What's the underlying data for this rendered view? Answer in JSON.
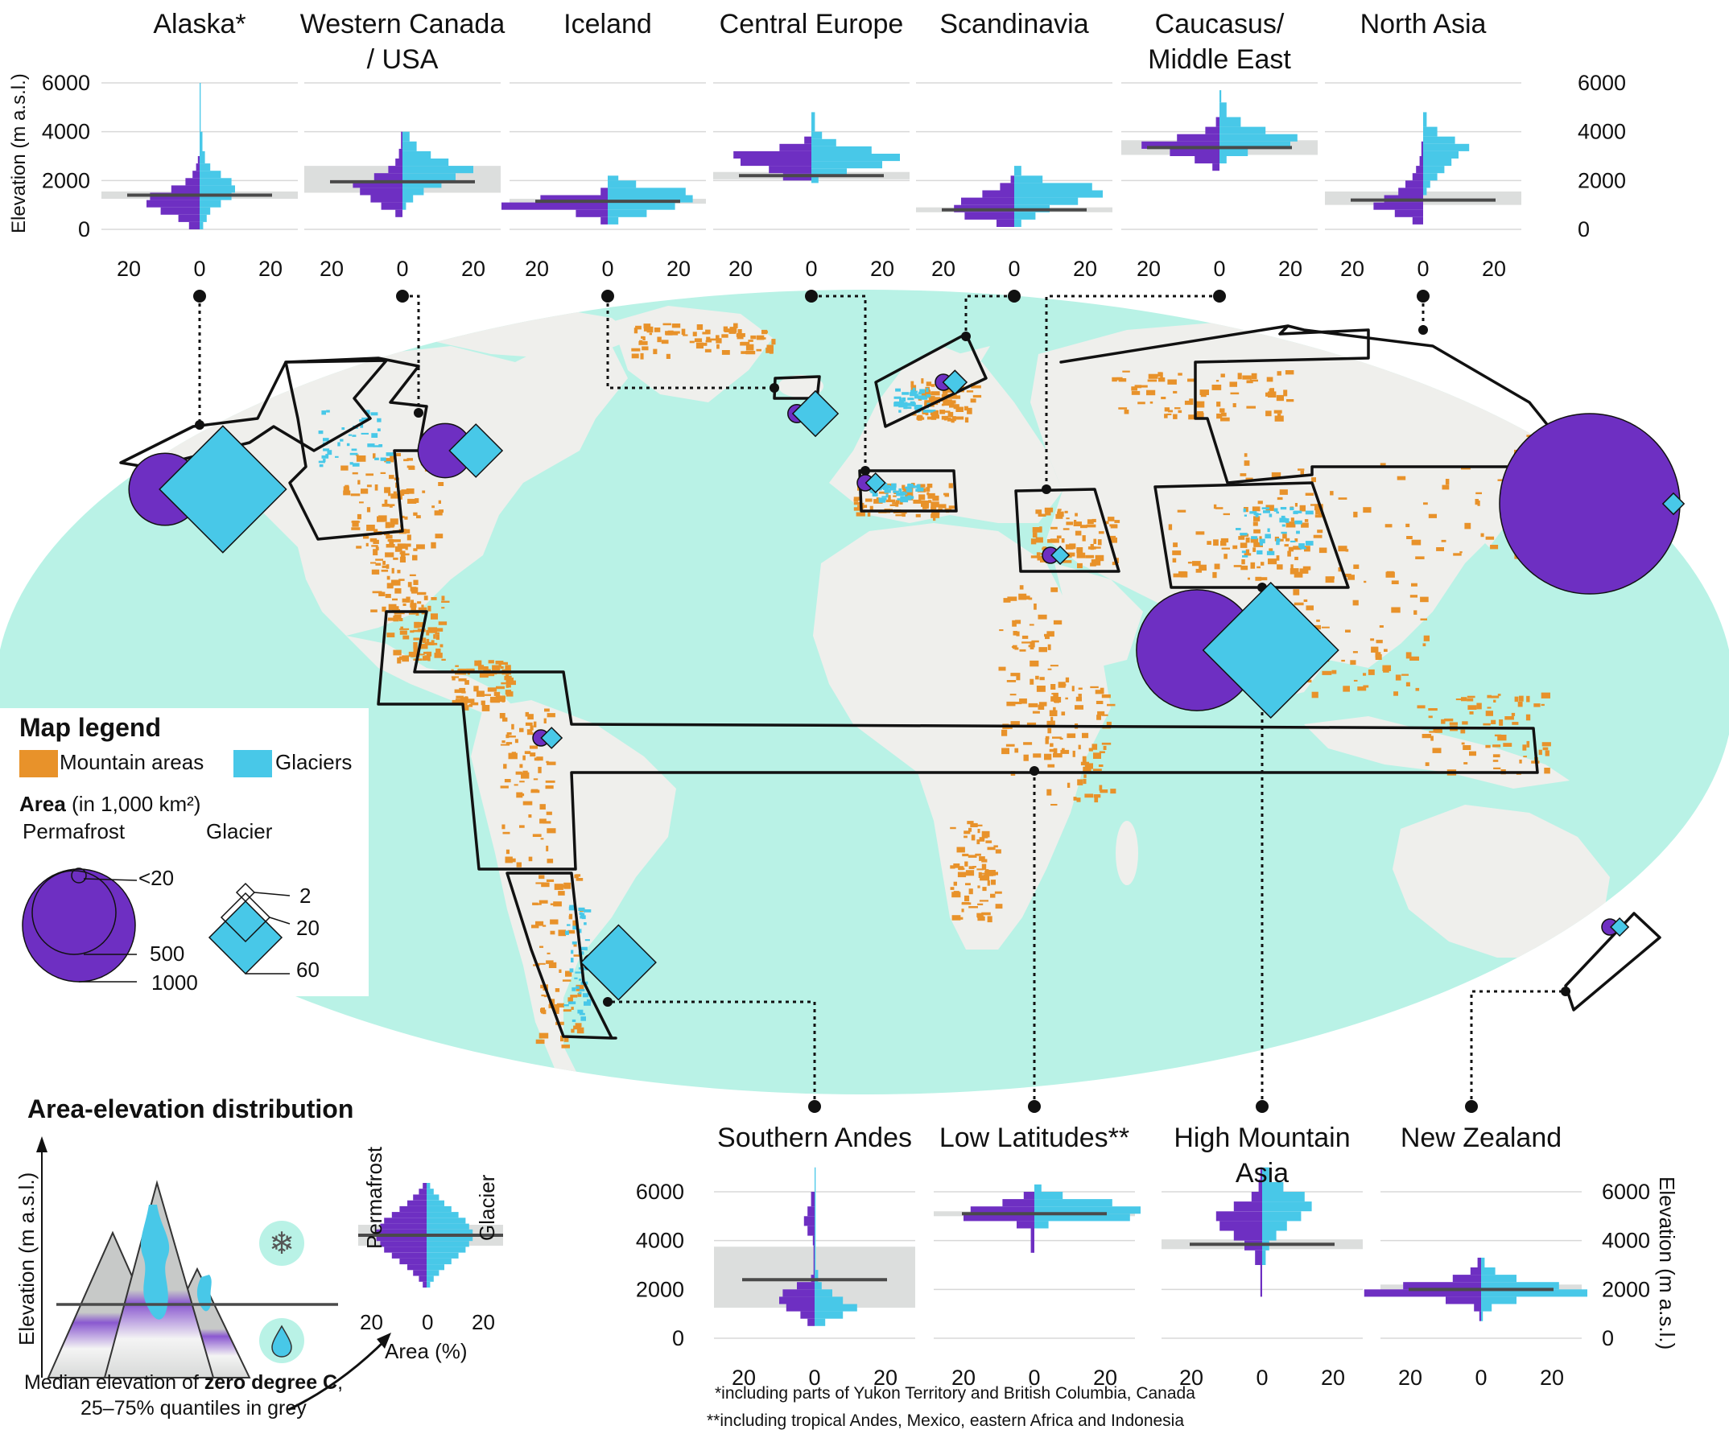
{
  "colors": {
    "ocean": "#b9f2e6",
    "land": "#efefec",
    "mountain": "#e8922a",
    "glacier": "#48c8e8",
    "permafrost": "#6e2fc2",
    "quantile": "#dcdedd",
    "median": "#4a4a4a"
  },
  "top_panels": [
    {
      "id": "alaska",
      "title": "Alaska*",
      "median": 1400,
      "q": [
        1250,
        1550
      ],
      "perm": [
        [
          0,
          300,
          3
        ],
        [
          300,
          600,
          6
        ],
        [
          600,
          900,
          11
        ],
        [
          900,
          1200,
          15
        ],
        [
          1200,
          1500,
          14
        ],
        [
          1500,
          1800,
          8
        ],
        [
          1800,
          2100,
          4
        ],
        [
          2100,
          2400,
          2
        ],
        [
          2400,
          2700,
          1
        ],
        [
          2700,
          3000,
          0.5
        ]
      ],
      "glac": [
        [
          0,
          300,
          1
        ],
        [
          300,
          600,
          2
        ],
        [
          600,
          900,
          3
        ],
        [
          900,
          1200,
          6
        ],
        [
          1200,
          1500,
          9
        ],
        [
          1500,
          1800,
          10
        ],
        [
          1800,
          2100,
          9
        ],
        [
          2100,
          2400,
          6
        ],
        [
          2400,
          2700,
          3
        ],
        [
          2700,
          3200,
          1.5
        ],
        [
          3200,
          4000,
          0.8
        ],
        [
          4000,
          6000,
          0.3
        ]
      ]
    },
    {
      "id": "wcanada",
      "title": "Western Canada / USA",
      "median": 1950,
      "q": [
        1500,
        2600
      ],
      "perm": [
        [
          500,
          800,
          2
        ],
        [
          800,
          1100,
          6
        ],
        [
          1100,
          1400,
          9
        ],
        [
          1400,
          1700,
          12
        ],
        [
          1700,
          2000,
          14
        ],
        [
          2000,
          2300,
          8
        ],
        [
          2300,
          2600,
          4
        ],
        [
          2600,
          2900,
          2
        ],
        [
          2900,
          3300,
          1
        ],
        [
          3300,
          4000,
          0.4
        ]
      ],
      "glac": [
        [
          800,
          1100,
          1
        ],
        [
          1100,
          1400,
          3
        ],
        [
          1400,
          1700,
          6
        ],
        [
          1700,
          2000,
          11
        ],
        [
          2000,
          2300,
          15
        ],
        [
          2300,
          2600,
          20
        ],
        [
          2600,
          2900,
          13
        ],
        [
          2900,
          3200,
          8
        ],
        [
          3200,
          3600,
          4
        ],
        [
          3600,
          4000,
          2
        ]
      ]
    },
    {
      "id": "iceland",
      "title": "Iceland",
      "median": 1150,
      "q": [
        1050,
        1250
      ],
      "perm": [
        [
          200,
          500,
          2
        ],
        [
          500,
          800,
          9
        ],
        [
          800,
          1100,
          30
        ],
        [
          1100,
          1400,
          19
        ],
        [
          1400,
          1700,
          2
        ]
      ],
      "glac": [
        [
          200,
          500,
          3
        ],
        [
          500,
          800,
          11
        ],
        [
          800,
          1100,
          19
        ],
        [
          1100,
          1400,
          24
        ],
        [
          1400,
          1700,
          22
        ],
        [
          1700,
          2000,
          8
        ],
        [
          2000,
          2200,
          3
        ]
      ]
    },
    {
      "id": "ceurope",
      "title": "Central Europe",
      "median": 2200,
      "q": [
        2050,
        2350
      ],
      "perm": [
        [
          2000,
          2300,
          8
        ],
        [
          2300,
          2600,
          12
        ],
        [
          2600,
          2900,
          20
        ],
        [
          2900,
          3200,
          22
        ],
        [
          3200,
          3500,
          9
        ],
        [
          3500,
          3800,
          2
        ]
      ],
      "glac": [
        [
          1900,
          2200,
          2
        ],
        [
          2200,
          2500,
          10
        ],
        [
          2500,
          2800,
          20
        ],
        [
          2800,
          3100,
          25
        ],
        [
          3100,
          3400,
          17
        ],
        [
          3400,
          3700,
          7
        ],
        [
          3700,
          4000,
          3
        ],
        [
          4000,
          4800,
          1
        ]
      ]
    },
    {
      "id": "scand",
      "title": "Scandinavia",
      "median": 800,
      "q": [
        700,
        900
      ],
      "perm": [
        [
          100,
          400,
          5
        ],
        [
          400,
          700,
          14
        ],
        [
          700,
          1000,
          17
        ],
        [
          1000,
          1300,
          15
        ],
        [
          1300,
          1600,
          9
        ],
        [
          1600,
          1900,
          4
        ],
        [
          1900,
          2200,
          1
        ]
      ],
      "glac": [
        [
          100,
          400,
          2
        ],
        [
          400,
          700,
          6
        ],
        [
          700,
          1000,
          10
        ],
        [
          1000,
          1300,
          18
        ],
        [
          1300,
          1600,
          25
        ],
        [
          1600,
          1900,
          22
        ],
        [
          1900,
          2200,
          8
        ],
        [
          2200,
          2600,
          2
        ]
      ]
    },
    {
      "id": "caucasus",
      "title": "Caucasus/ Middle East",
      "median": 3350,
      "q": [
        3050,
        3650
      ],
      "perm": [
        [
          2400,
          2700,
          2
        ],
        [
          2700,
          3000,
          7
        ],
        [
          3000,
          3300,
          14
        ],
        [
          3300,
          3600,
          22
        ],
        [
          3600,
          3900,
          12
        ],
        [
          3900,
          4200,
          4
        ],
        [
          4200,
          4600,
          1
        ]
      ],
      "glac": [
        [
          2700,
          3000,
          2
        ],
        [
          3000,
          3300,
          8
        ],
        [
          3300,
          3600,
          20
        ],
        [
          3600,
          3900,
          22
        ],
        [
          3900,
          4200,
          13
        ],
        [
          4200,
          4600,
          6
        ],
        [
          4600,
          5200,
          2
        ],
        [
          5200,
          5700,
          0.5
        ]
      ]
    },
    {
      "id": "nasia",
      "title": "North Asia",
      "median": 1200,
      "q": [
        1000,
        1550
      ],
      "perm": [
        [
          200,
          500,
          3
        ],
        [
          500,
          800,
          8
        ],
        [
          800,
          1100,
          14
        ],
        [
          1100,
          1400,
          11
        ],
        [
          1400,
          1700,
          7
        ],
        [
          1700,
          2000,
          5
        ],
        [
          2000,
          2300,
          3
        ],
        [
          2300,
          2600,
          2
        ],
        [
          2600,
          3000,
          1
        ],
        [
          3000,
          3600,
          0.5
        ]
      ],
      "glac": [
        [
          1400,
          1700,
          1
        ],
        [
          1700,
          2000,
          2
        ],
        [
          2000,
          2300,
          4
        ],
        [
          2300,
          2600,
          6
        ],
        [
          2600,
          2900,
          8
        ],
        [
          2900,
          3200,
          10
        ],
        [
          3200,
          3500,
          13
        ],
        [
          3500,
          3800,
          9
        ],
        [
          3800,
          4200,
          4
        ],
        [
          4200,
          4800,
          1
        ]
      ]
    }
  ],
  "bottom_panels": [
    {
      "id": "sandes",
      "title": "Southern Andes",
      "median": 2400,
      "q": [
        1250,
        3750
      ],
      "perm": [
        [
          500,
          800,
          2
        ],
        [
          800,
          1100,
          4
        ],
        [
          1100,
          1400,
          8
        ],
        [
          1400,
          1700,
          10
        ],
        [
          1700,
          2000,
          9
        ],
        [
          2000,
          2300,
          5
        ],
        [
          2300,
          2600,
          1
        ],
        [
          2600,
          3200,
          0.3
        ],
        [
          3200,
          3800,
          0.3
        ],
        [
          3800,
          4200,
          0.5
        ],
        [
          4200,
          4600,
          2
        ],
        [
          4600,
          5000,
          3
        ],
        [
          5000,
          5400,
          2
        ],
        [
          5400,
          6000,
          1
        ]
      ],
      "glac": [
        [
          500,
          800,
          3
        ],
        [
          800,
          1100,
          8
        ],
        [
          1100,
          1400,
          12
        ],
        [
          1400,
          1700,
          8
        ],
        [
          1700,
          2000,
          5
        ],
        [
          2000,
          2300,
          2
        ],
        [
          2300,
          2800,
          1
        ],
        [
          2800,
          7000,
          0.3
        ]
      ]
    },
    {
      "id": "lowlat",
      "title": "Low Latitudes**",
      "median": 5100,
      "q": [
        5000,
        5200
      ],
      "perm": [
        [
          3500,
          4500,
          1
        ],
        [
          4500,
          4800,
          5
        ],
        [
          4800,
          5100,
          20
        ],
        [
          5100,
          5400,
          18
        ],
        [
          5400,
          5700,
          9
        ],
        [
          5700,
          6000,
          3
        ]
      ],
      "glac": [
        [
          4500,
          4800,
          4
        ],
        [
          4800,
          5100,
          27
        ],
        [
          5100,
          5400,
          30
        ],
        [
          5400,
          5700,
          22
        ],
        [
          5700,
          6000,
          8
        ],
        [
          6000,
          6300,
          2
        ]
      ]
    },
    {
      "id": "hma",
      "title": "High Mountain Asia",
      "median": 3850,
      "q": [
        3650,
        4050
      ],
      "perm": [
        [
          1700,
          3000,
          0.5
        ],
        [
          3000,
          3600,
          2
        ],
        [
          3600,
          4000,
          5
        ],
        [
          4000,
          4400,
          8
        ],
        [
          4400,
          4800,
          12
        ],
        [
          4800,
          5200,
          13
        ],
        [
          5200,
          5600,
          8
        ],
        [
          5600,
          6000,
          3
        ],
        [
          6000,
          6500,
          1
        ],
        [
          6500,
          7000,
          0.5
        ]
      ],
      "glac": [
        [
          3000,
          3600,
          1
        ],
        [
          3600,
          4000,
          2
        ],
        [
          4000,
          4400,
          4
        ],
        [
          4400,
          4800,
          7
        ],
        [
          4800,
          5200,
          11
        ],
        [
          5200,
          5600,
          14
        ],
        [
          5600,
          6000,
          12
        ],
        [
          6000,
          6400,
          6
        ],
        [
          6400,
          7000,
          2
        ]
      ]
    },
    {
      "id": "nz",
      "title": "New Zealand",
      "median": 2000,
      "q": [
        1800,
        2200
      ],
      "perm": [
        [
          700,
          1100,
          0.5
        ],
        [
          1100,
          1400,
          2
        ],
        [
          1400,
          1700,
          10
        ],
        [
          1700,
          2000,
          33
        ],
        [
          2000,
          2300,
          22
        ],
        [
          2300,
          2600,
          8
        ],
        [
          2600,
          2900,
          3
        ],
        [
          2900,
          3300,
          1
        ]
      ],
      "glac": [
        [
          700,
          1100,
          0.5
        ],
        [
          1100,
          1400,
          3
        ],
        [
          1400,
          1700,
          10
        ],
        [
          1700,
          2000,
          30
        ],
        [
          2000,
          2300,
          22
        ],
        [
          2300,
          2600,
          10
        ],
        [
          2600,
          2900,
          4
        ],
        [
          2900,
          3300,
          1
        ]
      ]
    }
  ],
  "axis": {
    "top_left_label": "Elevation (m a.s.l.)",
    "bottom_right_label": "Elevation (m a.s.l.)",
    "y_ticks": [
      "0",
      "2000",
      "4000",
      "6000"
    ],
    "x_ticks": [
      "20",
      "0",
      "20"
    ],
    "x_range": [
      -25,
      25
    ],
    "y_range": [
      0,
      6000
    ]
  },
  "regions": [
    {
      "id": "alaska",
      "permafrost_area": 160,
      "glacier_area": 86
    },
    {
      "id": "wcanada",
      "permafrost_area": 90,
      "glacier_area": 15
    },
    {
      "id": "iceland",
      "permafrost_area": 10,
      "glacier_area": 11
    },
    {
      "id": "scand",
      "permafrost_area": 6,
      "glacier_area": 3
    },
    {
      "id": "ceurope",
      "permafrost_area": 8,
      "glacier_area": 2
    },
    {
      "id": "caucasus",
      "permafrost_area": 7,
      "glacier_area": 1.4
    },
    {
      "id": "nasia",
      "permafrost_area": 1000,
      "glacier_area": 2.4
    },
    {
      "id": "hma",
      "permafrost_area": 450,
      "glacier_area": 98
    },
    {
      "id": "lowlat",
      "permafrost_area": 6,
      "glacier_area": 2.3
    },
    {
      "id": "sandes",
      "permafrost_area": 6,
      "glacier_area": 30
    },
    {
      "id": "nz",
      "permafrost_area": 6,
      "glacier_area": 1.2
    }
  ],
  "map_legend": {
    "title": "Map legend",
    "mountain_label": "Mountain areas",
    "glacier_label": "Glaciers",
    "area_bold": "Area",
    "area_rest": " (in 1,000 km²)",
    "perm_title": "Permafrost",
    "glacier_title": "Glacier",
    "perm_sizes": [
      "<20",
      "500",
      "1000"
    ],
    "glacier_sizes": [
      "2",
      "20",
      "60"
    ]
  },
  "aed": {
    "title": "Area-elevation distribution",
    "y_label": "Elevation (m a.s.l.)",
    "perm_label": "Permafrost",
    "glac_label": "Glacier",
    "x_label": "Area (%)",
    "x_ticks": [
      "20",
      "0",
      "20"
    ],
    "note_line1_a": "Median elevation of ",
    "note_line1_b": "zero degree C",
    "note_line1_c": ",",
    "note_line2": "25–75% quantiles in grey"
  },
  "footnotes": [
    "*including parts of Yukon Territory and British Columbia, Canada",
    "**including tropical Andes, Mexico, eastern Africa and Indonesia"
  ]
}
